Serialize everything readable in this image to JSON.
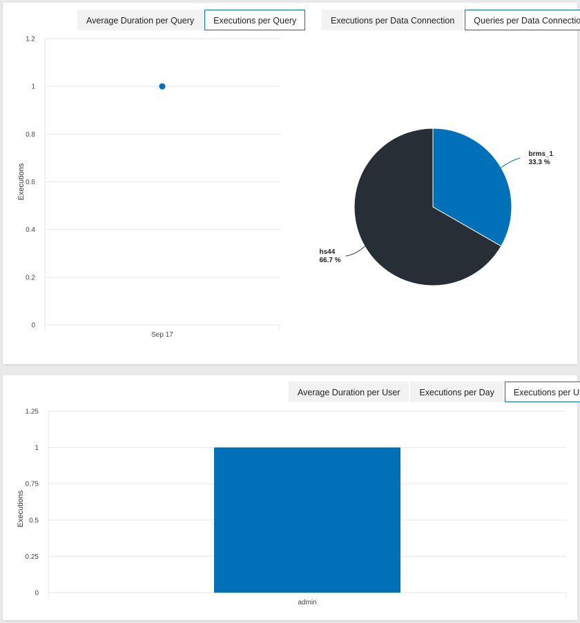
{
  "top_left_tabs": [
    {
      "label": "Average Duration per Query",
      "active": false
    },
    {
      "label": "Executions per Query",
      "active": true
    }
  ],
  "top_right_tabs": [
    {
      "label": "Executions per Data Connection",
      "active": false
    },
    {
      "label": "Queries per Data Connection",
      "active": true
    }
  ],
  "bottom_tabs": [
    {
      "label": "Average Duration per User",
      "active": false
    },
    {
      "label": "Executions per Day",
      "active": false
    },
    {
      "label": "Executions per User",
      "active": true
    }
  ],
  "colors": {
    "primary": "#0070b9",
    "dark": "#272e35",
    "active_border": "#0070b9"
  },
  "chart_data": [
    {
      "type": "scatter",
      "ylabel": "Executions",
      "x": [
        "Sep 17"
      ],
      "y": [
        1
      ],
      "ylim": [
        0,
        1.2
      ],
      "yticks": [
        "0",
        "0.2",
        "0.4",
        "0.6",
        "0.8",
        "1",
        "1.2"
      ],
      "grid": true
    },
    {
      "type": "pie",
      "slices": [
        {
          "label": "brms_1",
          "value": 33.3,
          "pct_label": "33.3 %",
          "color": "#0070b9"
        },
        {
          "label": "hs44",
          "value": 66.7,
          "pct_label": "66.7 %",
          "color": "#272e35"
        }
      ]
    },
    {
      "type": "bar",
      "ylabel": "Executions",
      "categories": [
        "admin"
      ],
      "values": [
        1
      ],
      "ylim": [
        0,
        1.25
      ],
      "yticks": [
        "0",
        "0.25",
        "0.5",
        "0.75",
        "1",
        "1.25"
      ],
      "grid": true
    }
  ]
}
